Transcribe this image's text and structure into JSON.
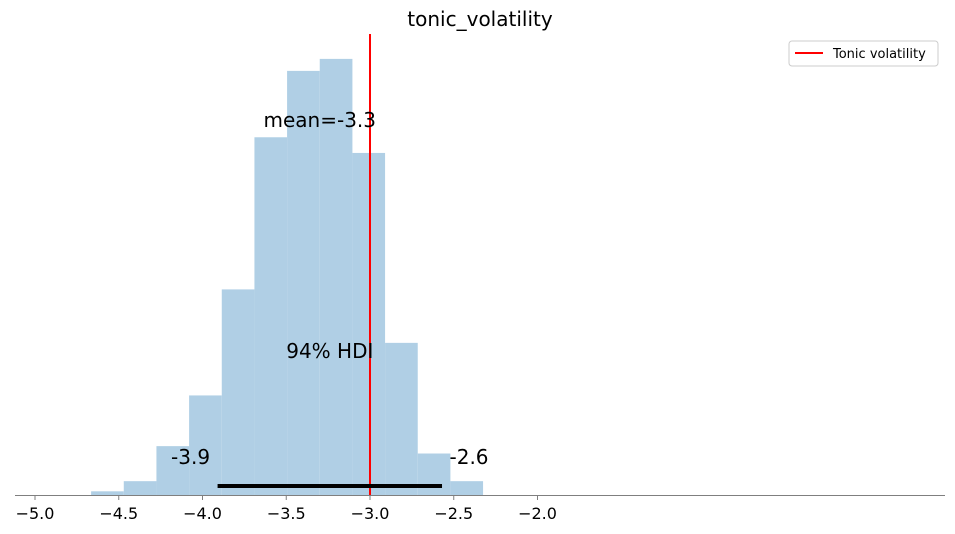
{
  "chart_data": {
    "type": "bar",
    "title": "tonic_volatility",
    "xlabel": "",
    "ylabel": "",
    "xlim": [
      -5.02,
      -1.73
    ],
    "ylim": [
      0,
      1
    ],
    "x_ticks": [
      -5.0,
      -4.5,
      -4.0,
      -3.5,
      -3.0,
      -2.5,
      -2.0
    ],
    "x_tick_labels": [
      "−5.0",
      "−4.5",
      "−4.0",
      "−3.5",
      "−3.0",
      "−2.5",
      "−2.0"
    ],
    "y_axis_visible": false,
    "grid": false,
    "bar_color": "#b0cfe5",
    "bins": [
      {
        "start": -4.665,
        "end": -4.47,
        "value": 0.008
      },
      {
        "start": -4.47,
        "end": -4.275,
        "value": 0.03
      },
      {
        "start": -4.275,
        "end": -4.08,
        "value": 0.106
      },
      {
        "start": -4.08,
        "end": -3.885,
        "value": 0.216
      },
      {
        "start": -3.885,
        "end": -3.69,
        "value": 0.446
      },
      {
        "start": -3.69,
        "end": -3.495,
        "value": 0.776
      },
      {
        "start": -3.495,
        "end": -3.3,
        "value": 0.92
      },
      {
        "start": -3.3,
        "end": -3.105,
        "value": 0.946
      },
      {
        "start": -3.105,
        "end": -2.91,
        "value": 0.742
      },
      {
        "start": -2.91,
        "end": -2.715,
        "value": 0.33
      },
      {
        "start": -2.715,
        "end": -2.52,
        "value": 0.09
      },
      {
        "start": -2.52,
        "end": -2.325,
        "value": 0.03
      }
    ],
    "mean_label": "mean=-3.3",
    "mean_label_x": -3.3,
    "hdi": {
      "label": "94% HDI",
      "low": -3.91,
      "high": -2.57,
      "low_label": "-3.9",
      "high_label": "-2.6",
      "color": "#000000"
    },
    "reference_line": {
      "x": -3.0,
      "color": "#ff0000",
      "label": "Tonic volatility"
    },
    "legend": {
      "placement": "top-right",
      "entries": [
        {
          "label": "Tonic volatility",
          "color": "#ff0000"
        }
      ]
    }
  }
}
